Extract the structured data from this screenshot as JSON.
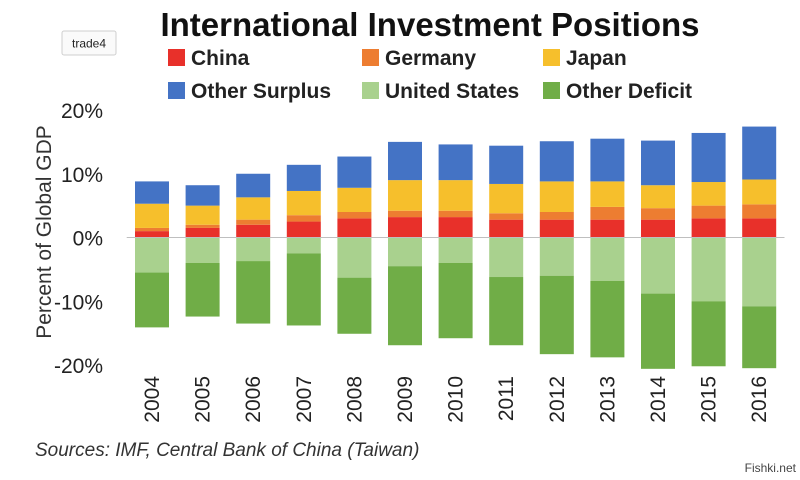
{
  "tag": "trade4",
  "watermark": "Fishki.net",
  "source_note": "Sources: IMF, Central Bank of China (Taiwan)",
  "chart_data": {
    "type": "bar",
    "stacked": true,
    "title": "International Investment Positions",
    "ylabel": "Percent of Global GDP",
    "xlabel": "",
    "ylim": [
      -20,
      20
    ],
    "yticks": [
      -20,
      -10,
      0,
      10,
      20
    ],
    "ytick_labels": [
      "-20%",
      "-10%",
      "0%",
      "10%",
      "20%"
    ],
    "grid": false,
    "legend_position": "top",
    "categories": [
      "2004",
      "2005",
      "2006",
      "2007",
      "2008",
      "2009",
      "2010",
      "2011",
      "2012",
      "2013",
      "2014",
      "2015",
      "2016"
    ],
    "series": [
      {
        "name": "China",
        "color": "#e8302a",
        "stack": "positive",
        "values": [
          1.0,
          1.5,
          2.0,
          2.5,
          3.0,
          3.2,
          3.2,
          2.8,
          2.8,
          2.8,
          2.8,
          3.0,
          3.0
        ]
      },
      {
        "name": "Germany",
        "color": "#ed7d31",
        "stack": "positive",
        "values": [
          0.5,
          0.5,
          0.8,
          1.0,
          1.0,
          1.0,
          1.0,
          1.0,
          1.2,
          2.0,
          1.8,
          2.0,
          2.2
        ]
      },
      {
        "name": "Japan",
        "color": "#f6bf2c",
        "stack": "positive",
        "values": [
          3.8,
          3.0,
          3.5,
          3.8,
          3.8,
          4.8,
          4.8,
          4.6,
          4.8,
          4.0,
          3.6,
          3.7,
          3.9
        ]
      },
      {
        "name": "Other Surplus",
        "color": "#4473c5",
        "stack": "positive",
        "values": [
          3.5,
          3.2,
          3.7,
          4.1,
          4.9,
          6.0,
          5.6,
          6.0,
          6.3,
          6.7,
          7.0,
          7.7,
          8.3
        ]
      },
      {
        "name": "United States",
        "color": "#a9d18e",
        "stack": "negative",
        "values": [
          -5.5,
          -4.0,
          -3.7,
          -2.5,
          -6.3,
          -4.5,
          -4.0,
          -6.2,
          -6.0,
          -6.8,
          -8.8,
          -10.0,
          -10.8
        ]
      },
      {
        "name": "Other Deficit",
        "color": "#70ad47",
        "stack": "negative",
        "values": [
          -8.6,
          -8.4,
          -9.8,
          -11.3,
          -8.8,
          -12.4,
          -11.8,
          -10.7,
          -12.3,
          -12.0,
          -11.8,
          -10.2,
          -9.7
        ]
      }
    ]
  }
}
